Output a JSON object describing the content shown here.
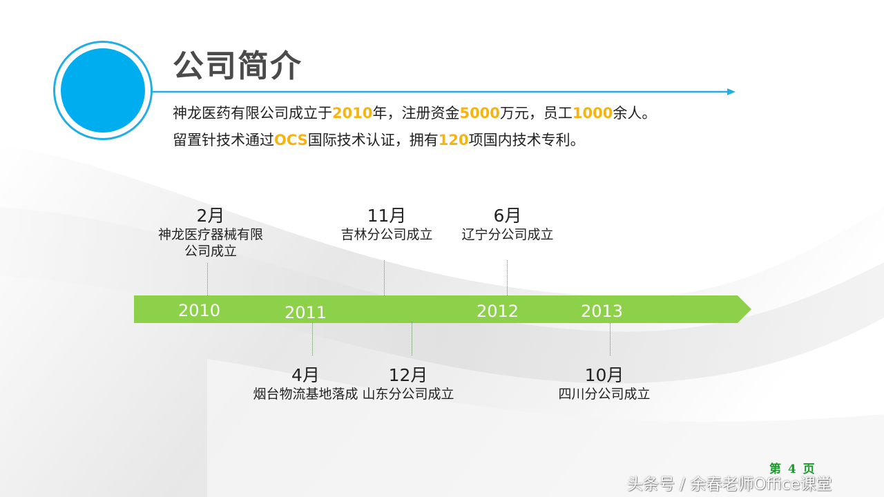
{
  "colors": {
    "accent_blue": "#00adef",
    "highlight_gold": "#f5b40f",
    "timeline_green": "#8dd14a",
    "page_number_green": "#1a9a2a"
  },
  "header": {
    "title": "公司简介",
    "logo_icon": "blue-circle-icon"
  },
  "intro": {
    "line1": {
      "p1": "神龙医药有限公司成立于",
      "year": "2010",
      "p2": "年，注册资金",
      "capital": "5000",
      "p3": "万元，员工",
      "staff": "1000",
      "p4": "余人。"
    },
    "line2": {
      "p1": "留置针技术通过",
      "cert": "OCS",
      "p2": "国际技术认证，拥有",
      "patents": "120",
      "p3": "项国内技术专利。"
    }
  },
  "timeline": {
    "years": [
      "2010",
      "2011",
      "2012",
      "2013"
    ],
    "events_top": [
      {
        "month": "2月",
        "desc_line1": "神龙医疗器械有限",
        "desc_line2": "公司成立"
      },
      {
        "month": "11月",
        "desc_line1": "吉林分公司成立"
      },
      {
        "month": "6月",
        "desc_line1": "辽宁分公司成立"
      }
    ],
    "events_bottom": [
      {
        "month": "4月",
        "desc_line1": "烟台物流基地落成"
      },
      {
        "month": "12月",
        "desc_line1": "山东分公司成立"
      },
      {
        "month": "10月",
        "desc_line1": "四川分公司成立"
      }
    ]
  },
  "footer": {
    "page_number": "第 4 页",
    "watermark": "头条号 / 余春老师Office课堂"
  }
}
